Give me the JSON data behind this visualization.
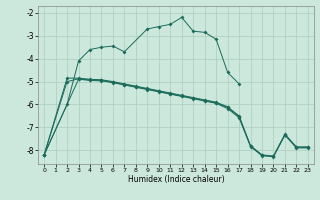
{
  "xlabel": "Humidex (Indice chaleur)",
  "background_color": "#cce8dd",
  "grid_color": "#aaccbb",
  "line_color": "#1a6b5a",
  "xlim": [
    -0.5,
    23.5
  ],
  "ylim": [
    -8.6,
    -1.7
  ],
  "xticks": [
    0,
    1,
    2,
    3,
    4,
    5,
    6,
    7,
    8,
    9,
    10,
    11,
    12,
    13,
    14,
    15,
    16,
    17,
    18,
    19,
    20,
    21,
    22,
    23
  ],
  "yticks": [
    -8,
    -7,
    -6,
    -5,
    -4,
    -3,
    -2
  ],
  "line1_x": [
    0,
    2,
    3,
    4,
    5,
    6,
    7,
    9,
    10,
    11,
    12,
    13,
    14,
    15,
    16,
    17
  ],
  "line1_y": [
    -8.2,
    -6.0,
    -4.1,
    -3.6,
    -3.5,
    -3.45,
    -3.7,
    -2.7,
    -2.6,
    -2.5,
    -2.2,
    -2.8,
    -2.85,
    -3.15,
    -4.6,
    -5.1
  ],
  "line2_x": [
    0,
    2,
    3,
    4,
    5,
    6,
    7,
    8,
    9,
    10,
    11,
    12,
    13,
    14,
    15,
    16,
    17,
    18,
    19,
    20,
    21,
    22,
    23
  ],
  "line2_y": [
    -8.2,
    -4.85,
    -4.85,
    -4.9,
    -4.92,
    -5.0,
    -5.1,
    -5.2,
    -5.3,
    -5.4,
    -5.5,
    -5.6,
    -5.7,
    -5.8,
    -5.9,
    -6.1,
    -6.5,
    -7.8,
    -8.2,
    -8.25,
    -7.3,
    -7.85,
    -7.85
  ],
  "line3_x": [
    0,
    2,
    3,
    4,
    5,
    6,
    7,
    8,
    9,
    10,
    11,
    12,
    13,
    14,
    15,
    16,
    17,
    18,
    19,
    20,
    21,
    22,
    23
  ],
  "line3_y": [
    -8.2,
    -5.0,
    -4.88,
    -4.93,
    -4.95,
    -5.03,
    -5.13,
    -5.23,
    -5.33,
    -5.43,
    -5.53,
    -5.63,
    -5.73,
    -5.83,
    -5.93,
    -6.13,
    -6.53,
    -7.82,
    -8.22,
    -8.27,
    -7.32,
    -7.87,
    -7.87
  ],
  "line4_x": [
    0,
    3,
    4,
    5,
    6,
    7,
    8,
    9,
    10,
    11,
    12,
    13,
    14,
    15,
    16,
    17,
    18,
    19,
    20,
    21,
    22,
    23
  ],
  "line4_y": [
    -8.2,
    -4.9,
    -4.95,
    -4.97,
    -5.05,
    -5.15,
    -5.25,
    -5.35,
    -5.45,
    -5.55,
    -5.65,
    -5.75,
    -5.85,
    -5.95,
    -6.18,
    -6.58,
    -7.84,
    -8.24,
    -8.28,
    -7.34,
    -7.9,
    -7.9
  ]
}
